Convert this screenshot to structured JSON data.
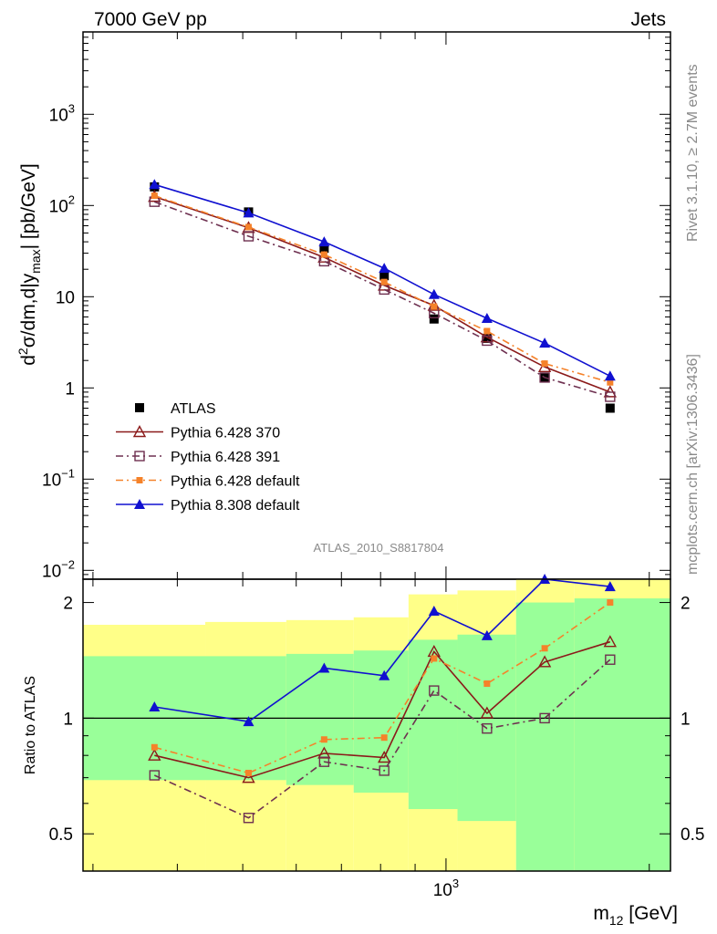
{
  "header": {
    "left": "7000 GeV pp",
    "right": "Jets"
  },
  "side": {
    "rivet": "Rivet 3.1.10, ≥ 2.7M events",
    "mcplots": "mcplots.cern.ch [arXiv:1306.3436]"
  },
  "analysis_id": "ATLAS_2010_S8817804",
  "chart_data": [
    {
      "type": "line",
      "title": "",
      "ylabel": "d²σ/dm,d|y_max| [pb/GeV]",
      "ylabel_main": "d",
      "ylabel_sup": "2",
      "ylabel_mid": "σ/dm,d|y",
      "ylabel_sub": "max",
      "ylabel_end": "| [pb/GeV]",
      "xlabel": "m12 [GeV]",
      "xlabel_main": "m",
      "xlabel_sub": "12",
      "xlabel_end": " [GeV]",
      "x_scale": "log",
      "y_scale": "log",
      "xlim": [
        290,
        2150
      ],
      "ylim": [
        0.008,
        8000
      ],
      "y_ticks": [
        {
          "value": 1000,
          "base": "10",
          "exp": "3"
        },
        {
          "value": 100,
          "base": "10",
          "exp": "2"
        },
        {
          "value": 10,
          "base": "10",
          "exp": ""
        },
        {
          "value": 1,
          "base": "1",
          "exp": ""
        },
        {
          "value": 0.1,
          "base": "10",
          "exp": "−1"
        },
        {
          "value": 0.01,
          "base": "10",
          "exp": "−2"
        }
      ],
      "x_ticks": [
        {
          "value": 1000,
          "base": "10",
          "exp": "3"
        }
      ],
      "x": [
        370,
        510,
        660,
        810,
        960,
        1150,
        1400,
        1750
      ],
      "legend_position": "lower-left",
      "series": [
        {
          "name": "ATLAS",
          "color": "#000000",
          "marker": "square-filled",
          "line": "none",
          "values": [
            160,
            85,
            34,
            17,
            5.7,
            3.5,
            1.3,
            0.6
          ]
        },
        {
          "name": "Pythia 6.428 370",
          "color": "#8b1a1a",
          "marker": "triangle-open",
          "line": "solid",
          "values": [
            125,
            57,
            27,
            13.3,
            8,
            3.6,
            1.7,
            0.9
          ]
        },
        {
          "name": "Pythia 6.428 391",
          "color": "#6e3050",
          "marker": "square-open",
          "line": "dashdot",
          "values": [
            110,
            46,
            24.5,
            12,
            6.6,
            3.3,
            1.3,
            0.8
          ]
        },
        {
          "name": "Pythia 6.428 default",
          "color": "#f5822a",
          "marker": "square-small",
          "line": "dashdot",
          "values": [
            128,
            58,
            29,
            14.5,
            7.8,
            4.2,
            1.85,
            1.15
          ]
        },
        {
          "name": "Pythia 8.308 default",
          "color": "#1010d0",
          "marker": "triangle-filled",
          "line": "solid",
          "values": [
            170,
            83,
            40,
            20.5,
            10.6,
            5.8,
            3.1,
            1.35
          ]
        }
      ]
    },
    {
      "type": "line",
      "ylabel": "Ratio to ATLAS",
      "xlabel": "",
      "y_scale": "log",
      "ylim": [
        0.4,
        2.3
      ],
      "y_ticks": [
        {
          "value": 2,
          "label": "2"
        },
        {
          "value": 1,
          "label": "1"
        },
        {
          "value": 0.5,
          "label": "0.5"
        }
      ],
      "x": [
        370,
        510,
        660,
        810,
        960,
        1150,
        1400,
        1750
      ],
      "bin_edges": [
        290,
        440,
        580,
        730,
        880,
        1040,
        1270,
        1550,
        2150
      ],
      "uncertainty_bands": {
        "inner_color": "#99ff99",
        "outer_color": "#ffff88",
        "inner_lo": [
          0.69,
          0.69,
          0.67,
          0.64,
          0.58,
          0.54,
          0.4,
          0.4
        ],
        "inner_hi": [
          1.45,
          1.45,
          1.47,
          1.5,
          1.6,
          1.65,
          2.0,
          2.05
        ],
        "outer_lo": [
          0.4,
          0.4,
          0.4,
          0.4,
          0.4,
          0.4,
          0.4,
          0.4
        ],
        "outer_hi": [
          1.75,
          1.78,
          1.8,
          1.83,
          2.1,
          2.15,
          2.3,
          2.3
        ]
      },
      "series": [
        {
          "name": "Pythia 6.428 370",
          "color": "#8b1a1a",
          "values": [
            0.8,
            0.7,
            0.81,
            0.79,
            1.49,
            1.03,
            1.4,
            1.58
          ]
        },
        {
          "name": "Pythia 6.428 391",
          "color": "#6e3050",
          "values": [
            0.71,
            0.55,
            0.77,
            0.73,
            1.18,
            0.94,
            1.0,
            1.42
          ]
        },
        {
          "name": "Pythia 6.428 default",
          "color": "#f5822a",
          "values": [
            0.84,
            0.72,
            0.88,
            0.89,
            1.43,
            1.23,
            1.52,
            2.0
          ]
        },
        {
          "name": "Pythia 8.308 default",
          "color": "#1010d0",
          "values": [
            1.07,
            0.98,
            1.35,
            1.29,
            1.9,
            1.64,
            2.3,
            2.2
          ]
        }
      ]
    }
  ]
}
